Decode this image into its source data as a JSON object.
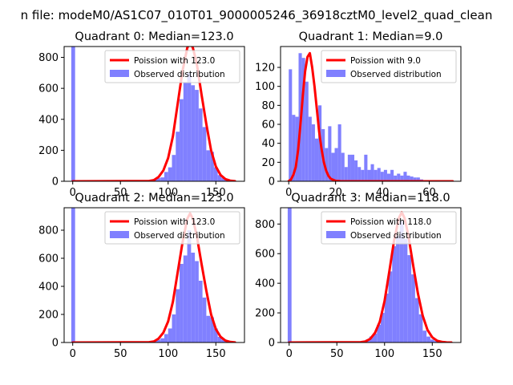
{
  "figure": {
    "suptitle": "n file: modeM0/AS1C07_010T01_9000005246_36918cztM0_level2_quad_clean"
  },
  "colors": {
    "hist": "#8080ff",
    "fit": "#ff0000",
    "axis": "#000000"
  },
  "chart_data": [
    {
      "type": "bar",
      "title": "Quadrant 0: Median=123.0",
      "xlim": [
        -9,
        180
      ],
      "ylim": [
        0,
        870
      ],
      "xticks": [
        0,
        50,
        100,
        150
      ],
      "yticks": [
        0,
        200,
        400,
        600,
        800
      ],
      "legend_position": "top-right",
      "legend": [
        "Poission with 123.0",
        "Observed distribution"
      ],
      "hist": {
        "series_name": "Observed distribution",
        "bin_width": 4,
        "left_edges": [
          -1.5,
          72,
          76,
          80,
          84,
          88,
          92,
          96,
          100,
          104,
          108,
          112,
          116,
          120,
          124,
          128,
          132,
          136,
          140,
          144,
          148,
          152,
          156,
          160,
          164,
          168
        ],
        "counts": [
          870,
          2,
          5,
          8,
          15,
          20,
          25,
          60,
          90,
          170,
          320,
          530,
          640,
          700,
          620,
          590,
          470,
          350,
          200,
          190,
          90,
          40,
          20,
          10,
          5,
          2
        ]
      },
      "fit": {
        "series_name": "Poission with 123.0",
        "x": [
          0,
          80,
          85,
          90,
          95,
          100,
          105,
          110,
          115,
          120,
          123,
          126,
          130,
          135,
          140,
          145,
          150,
          155,
          160,
          165,
          170
        ],
        "y": [
          0,
          2,
          7,
          28,
          70,
          150,
          290,
          500,
          710,
          860,
          900,
          860,
          760,
          560,
          370,
          200,
          95,
          40,
          14,
          4,
          1
        ]
      }
    },
    {
      "type": "bar",
      "title": "Quadrant 1: Median=9.0",
      "xlim": [
        -3.5,
        73.5
      ],
      "ylim": [
        0,
        142
      ],
      "xticks": [
        0,
        20,
        40,
        60
      ],
      "yticks": [
        0,
        20,
        40,
        60,
        80,
        100,
        120
      ],
      "legend_position": "top-right",
      "legend": [
        "Poission with 9.0",
        "Observed distribution"
      ],
      "hist": {
        "series_name": "Observed distribution",
        "bin_width": 1.4,
        "left_edges": [
          0.0,
          1.4,
          2.8,
          4.2,
          5.6,
          7.0,
          8.4,
          9.8,
          11.2,
          12.6,
          14.0,
          15.4,
          16.8,
          18.2,
          19.6,
          21.0,
          22.4,
          23.8,
          25.2,
          26.6,
          28.0,
          29.4,
          30.8,
          32.2,
          33.6,
          35.0,
          36.4,
          37.8,
          39.2,
          40.6,
          42.0,
          43.4,
          44.8,
          46.2,
          47.6,
          49.0,
          50.4,
          51.8,
          53.2,
          54.6,
          56.0
        ],
        "counts": [
          118,
          70,
          68,
          135,
          130,
          105,
          68,
          60,
          45,
          80,
          55,
          35,
          58,
          30,
          35,
          60,
          30,
          15,
          28,
          28,
          22,
          15,
          12,
          28,
          12,
          18,
          12,
          14,
          10,
          12,
          8,
          12,
          6,
          8,
          6,
          10,
          6,
          5,
          4,
          4,
          2
        ]
      },
      "fit": {
        "series_name": "Poission with 9.0",
        "x": [
          0,
          1,
          2,
          3,
          4,
          5,
          6,
          7,
          8,
          9,
          10,
          11,
          12,
          13,
          14,
          15,
          16,
          17,
          18,
          20,
          22,
          30,
          50,
          70
        ],
        "y": [
          0.2,
          2,
          7,
          15,
          33,
          60,
          90,
          116,
          131,
          135,
          120,
          100,
          76,
          52,
          34,
          20,
          11,
          5.5,
          2.5,
          0.5,
          0.1,
          0,
          0,
          0
        ]
      }
    },
    {
      "type": "bar",
      "title": "Quadrant 2: Median=123.0",
      "xlim": [
        -9,
        180
      ],
      "ylim": [
        0,
        960
      ],
      "xticks": [
        0,
        50,
        100,
        150
      ],
      "yticks": [
        0,
        200,
        400,
        600,
        800
      ],
      "legend_position": "top-right",
      "legend": [
        "Poission with 123.0",
        "Observed distribution"
      ],
      "hist": {
        "series_name": "Observed distribution",
        "bin_width": 4,
        "left_edges": [
          -1.5,
          72,
          76,
          80,
          84,
          88,
          92,
          96,
          100,
          104,
          108,
          112,
          116,
          120,
          124,
          128,
          132,
          136,
          140,
          144,
          148,
          152,
          156,
          160,
          164,
          168
        ],
        "counts": [
          960,
          2,
          4,
          8,
          15,
          20,
          30,
          60,
          100,
          200,
          380,
          560,
          620,
          800,
          640,
          580,
          440,
          320,
          190,
          180,
          100,
          40,
          20,
          8,
          4,
          2
        ]
      },
      "fit": {
        "series_name": "Poission with 123.0",
        "x": [
          0,
          80,
          85,
          90,
          95,
          100,
          105,
          110,
          115,
          120,
          123,
          126,
          130,
          135,
          140,
          145,
          150,
          155,
          160,
          165,
          170
        ],
        "y": [
          0,
          2,
          7,
          28,
          70,
          150,
          290,
          500,
          710,
          880,
          920,
          880,
          760,
          560,
          370,
          200,
          95,
          40,
          14,
          4,
          1
        ]
      }
    },
    {
      "type": "bar",
      "title": "Quadrant 3: Median=118.0",
      "xlim": [
        -9,
        180
      ],
      "ylim": [
        0,
        910
      ],
      "xticks": [
        0,
        50,
        100,
        150
      ],
      "yticks": [
        0,
        200,
        400,
        600,
        800
      ],
      "legend_position": "top-right",
      "legend": [
        "Poission with 118.0",
        "Observed distribution"
      ],
      "hist": {
        "series_name": "Observed distribution",
        "bin_width": 4,
        "left_edges": [
          -1.5,
          68,
          72,
          76,
          80,
          84,
          88,
          92,
          96,
          100,
          104,
          108,
          112,
          116,
          120,
          124,
          128,
          132,
          136,
          140,
          144,
          148,
          152,
          156,
          160,
          164
        ],
        "counts": [
          910,
          2,
          5,
          10,
          20,
          40,
          60,
          120,
          200,
          330,
          480,
          650,
          720,
          820,
          700,
          590,
          460,
          300,
          190,
          80,
          40,
          20,
          10,
          5,
          2,
          1
        ]
      },
      "fit": {
        "series_name": "Poission with 118.0",
        "x": [
          0,
          75,
          80,
          85,
          90,
          95,
          100,
          105,
          110,
          115,
          118,
          121,
          125,
          130,
          135,
          140,
          145,
          150,
          155,
          160,
          165,
          170
        ],
        "y": [
          0,
          2,
          7,
          25,
          65,
          140,
          280,
          480,
          690,
          840,
          880,
          840,
          720,
          520,
          330,
          180,
          85,
          35,
          12,
          4,
          1,
          0
        ]
      }
    }
  ]
}
